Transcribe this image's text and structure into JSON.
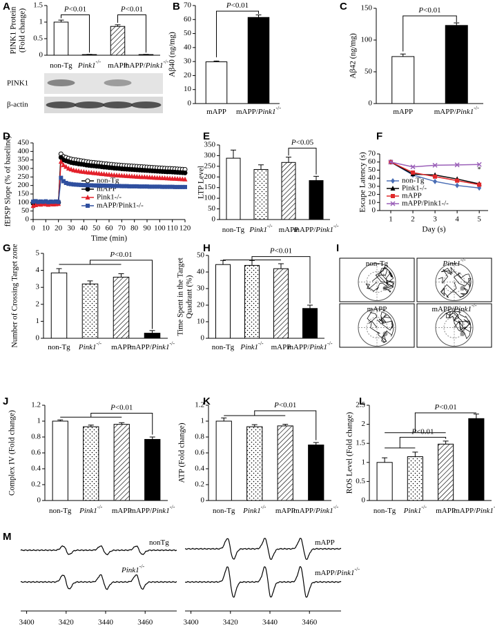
{
  "chart_data": [
    {
      "type": "bar",
      "label": "A",
      "y_label": [
        "PINK1 Protein",
        "(Fold change)"
      ],
      "categories": [
        "non-Tg",
        "Pink1-/-",
        "mAPP",
        "mAPP/Pink1-/-"
      ],
      "values": [
        1.0,
        0.02,
        0.87,
        0.02
      ],
      "errors": [
        0.06,
        0.005,
        0.05,
        0.005
      ],
      "fills": [
        "white",
        "white",
        "hatch",
        "white"
      ],
      "ylim": [
        0,
        1.5
      ],
      "yticks": [
        0,
        0.5,
        1,
        1.5
      ],
      "annotations": [
        "P<0.01",
        "P<0.01"
      ],
      "blot_labels": [
        "PINK1",
        "β-actin"
      ]
    },
    {
      "type": "bar",
      "label": "B",
      "y_label": "Aβ40 (ng/mg)",
      "categories": [
        "mAPP",
        "mAPP/Pink1-/-"
      ],
      "values": [
        29.8,
        61.5
      ],
      "errors": [
        0.6,
        1.8
      ],
      "fills": [
        "white",
        "black"
      ],
      "ylim": [
        0,
        70
      ],
      "yticks": [
        0,
        10,
        20,
        30,
        40,
        50,
        60,
        70
      ],
      "annotations": [
        "P<0.01"
      ]
    },
    {
      "type": "bar",
      "label": "C",
      "y_label": "Aβ42 (ng/mg)",
      "categories": [
        "mAPP",
        "mAPP/Pink1-/-"
      ],
      "values": [
        74,
        123
      ],
      "errors": [
        4,
        4
      ],
      "fills": [
        "white",
        "black"
      ],
      "ylim": [
        0,
        150
      ],
      "yticks": [
        0,
        50,
        100,
        150
      ],
      "annotations": [
        "P<0.01"
      ]
    },
    {
      "type": "line",
      "label": "D",
      "y_label": "fEPSP Slope (% of baseline)",
      "x_label": "Time (min)",
      "legend": "lower left",
      "x": [
        0,
        2,
        4,
        6,
        8,
        10,
        12,
        14,
        16,
        18,
        20,
        22,
        24,
        26,
        28,
        30,
        32,
        34,
        36,
        38,
        40,
        42,
        44,
        46,
        48,
        50,
        52,
        54,
        56,
        58,
        60,
        62,
        64,
        66,
        68,
        70,
        72,
        74,
        76,
        78,
        80,
        82,
        84,
        86,
        88,
        90,
        92,
        94,
        96,
        98,
        100,
        102,
        104,
        106,
        108,
        110,
        112,
        114,
        116,
        118,
        120
      ],
      "xlim": [
        0,
        120
      ],
      "xticks": [
        0,
        10,
        20,
        30,
        40,
        50,
        60,
        70,
        80,
        90,
        100,
        110,
        120
      ],
      "ylim": [
        0,
        450
      ],
      "yticks": [
        0,
        50,
        100,
        150,
        200,
        250,
        300,
        350,
        400,
        450
      ],
      "series": [
        {
          "name": "non-Tg",
          "color": "#000000",
          "marker": "circle-open",
          "values": [
            100,
            98,
            102,
            99,
            101,
            100,
            97,
            103,
            100,
            99,
            101,
            385,
            370,
            365,
            360,
            355,
            352,
            350,
            348,
            345,
            343,
            340,
            338,
            336,
            335,
            333,
            332,
            330,
            328,
            327,
            325,
            324,
            322,
            321,
            320,
            318,
            317,
            316,
            315,
            314,
            313,
            312,
            311,
            310,
            309,
            308,
            307,
            306,
            305,
            304,
            303,
            302,
            301,
            300,
            300,
            299,
            298,
            297,
            296,
            295,
            294
          ]
        },
        {
          "name": "mAPP",
          "color": "#000000",
          "marker": "circle",
          "values": [
            95,
            97,
            99,
            96,
            98,
            100,
            97,
            99,
            98,
            96,
            99,
            365,
            350,
            345,
            340,
            335,
            332,
            330,
            327,
            325,
            323,
            320,
            318,
            316,
            315,
            313,
            312,
            310,
            308,
            307,
            305,
            304,
            302,
            301,
            300,
            298,
            297,
            296,
            295,
            294,
            293,
            292,
            291,
            290,
            289,
            288,
            287,
            286,
            285,
            284,
            283,
            282,
            281,
            280,
            280,
            279,
            278,
            277,
            276,
            275,
            274
          ]
        },
        {
          "name": "Pink1-/-",
          "color": "#e3202a",
          "marker": "triangle",
          "values": [
            80,
            85,
            90,
            88,
            92,
            90,
            87,
            91,
            89,
            90,
            92,
            340,
            320,
            310,
            300,
            295,
            290,
            287,
            285,
            282,
            280,
            278,
            276,
            275,
            273,
            272,
            270,
            268,
            267,
            265,
            264,
            262,
            261,
            260,
            259,
            258,
            257,
            256,
            255,
            254,
            253,
            252,
            251,
            250,
            250,
            249,
            248,
            247,
            246,
            245,
            245,
            244,
            243,
            242,
            241,
            240,
            240,
            239,
            238,
            237,
            236
          ]
        },
        {
          "name": "mAPP/Pink1-/-",
          "color": "#2f4f9f",
          "marker": "square",
          "values": [
            105,
            108,
            103,
            106,
            104,
            107,
            102,
            105,
            104,
            106,
            103,
            245,
            225,
            215,
            210,
            208,
            206,
            205,
            204,
            203,
            202,
            202,
            201,
            201,
            200,
            200,
            200,
            199,
            199,
            198,
            198,
            198,
            197,
            197,
            197,
            196,
            196,
            196,
            195,
            195,
            195,
            195,
            194,
            194,
            194,
            194,
            193,
            193,
            193,
            193,
            193,
            192,
            192,
            192,
            192,
            192,
            191,
            191,
            191,
            191,
            191
          ]
        }
      ]
    },
    {
      "type": "bar",
      "label": "E",
      "y_label": "LTP Level",
      "categories": [
        "non-Tg",
        "Pink1-/-",
        "mAPP",
        "mAPP/Pink1-/-"
      ],
      "values": [
        288,
        235,
        268,
        183
      ],
      "errors": [
        38,
        22,
        25,
        20
      ],
      "fills": [
        "white",
        "dots",
        "hatch",
        "black"
      ],
      "ylim": [
        0,
        350
      ],
      "yticks": [
        0,
        50,
        100,
        150,
        200,
        250,
        300,
        350
      ],
      "annotations": [
        "P<0.05"
      ]
    },
    {
      "type": "line",
      "label": "F",
      "y_label": "Escape Latency (s)",
      "x_label": "Day (s)",
      "legend": "lower left",
      "x": [
        1,
        2,
        3,
        4,
        5
      ],
      "xlim": [
        0.5,
        5.4
      ],
      "xticks": [
        1,
        2,
        3,
        4,
        5
      ],
      "ylim": [
        0,
        70
      ],
      "yticks": [
        0,
        10,
        20,
        30,
        40,
        50,
        60,
        70
      ],
      "annotations": [
        "*"
      ],
      "series": [
        {
          "name": "non-Tg",
          "color": "#4a6eb5",
          "marker": "diamond",
          "values": [
            60,
            44,
            36,
            31,
            28
          ]
        },
        {
          "name": "Pink1-/-",
          "color": "#000000",
          "marker": "triangle",
          "values": [
            60,
            45,
            44,
            39,
            33
          ]
        },
        {
          "name": "mAPP",
          "color": "#e0282a",
          "marker": "square",
          "values": [
            60,
            47,
            42,
            37,
            32
          ]
        },
        {
          "name": "mAPP/Pink1-/-",
          "color": "#9a5fb8",
          "marker": "cross",
          "values": [
            60,
            54,
            56,
            56.5,
            57
          ]
        }
      ]
    },
    {
      "type": "bar",
      "label": "G",
      "y_label": "Number of Crossing Target zone",
      "categories": [
        "non-Tg",
        "Pink1-/-",
        "mAPP",
        "mAPP/Pink1-/-"
      ],
      "values": [
        3.85,
        3.2,
        3.6,
        0.3
      ],
      "errors": [
        0.25,
        0.18,
        0.2,
        0.15
      ],
      "fills": [
        "white",
        "dots",
        "hatch",
        "black"
      ],
      "ylim": [
        0,
        5
      ],
      "yticks": [
        0,
        1,
        2,
        3,
        4,
        5
      ],
      "annotations": [
        "P<0.01"
      ]
    },
    {
      "type": "bar",
      "label": "H",
      "y_label": [
        "Time Spent in the Target",
        "Quadrant (%)"
      ],
      "categories": [
        "non-Tg",
        "Pink1-/-",
        "mAPP",
        "mAPP/Pink1-/-"
      ],
      "values": [
        44.5,
        44,
        42,
        18
      ],
      "errors": [
        2.5,
        3,
        3,
        2
      ],
      "fills": [
        "white",
        "dots",
        "hatch",
        "black"
      ],
      "ylim": [
        0,
        50
      ],
      "yticks": [
        0,
        10,
        20,
        30,
        40,
        50
      ],
      "annotations": [
        "P<0.01"
      ]
    },
    {
      "type": "tracks",
      "label": "I",
      "panel_labels": [
        "non-Tg",
        "Pink1-/-",
        "mAPP",
        "mAPP/Pink1-/-"
      ]
    },
    {
      "type": "bar",
      "label": "J",
      "y_label": "Complex IV (Fold change)",
      "categories": [
        "non-Tg",
        "Pink1-/-",
        "mAPP",
        "mAPP/Pink1-/-"
      ],
      "values": [
        1.0,
        0.93,
        0.96,
        0.77
      ],
      "errors": [
        0.015,
        0.02,
        0.02,
        0.03
      ],
      "fills": [
        "white",
        "dots",
        "hatch",
        "black"
      ],
      "ylim": [
        0,
        1.2
      ],
      "yticks": [
        0,
        0.2,
        0.4,
        0.6,
        0.8,
        1,
        1.2
      ],
      "annotations": [
        "P<0.01"
      ]
    },
    {
      "type": "bar",
      "label": "K",
      "y_label": "ATP (Fold change)",
      "categories": [
        "non-Tg",
        "Pink1-/-",
        "mAPP",
        "mAPP/Pink1-/-"
      ],
      "values": [
        1.0,
        0.93,
        0.94,
        0.7
      ],
      "errors": [
        0.04,
        0.025,
        0.02,
        0.03
      ],
      "fills": [
        "white",
        "dots",
        "hatch",
        "black"
      ],
      "ylim": [
        0,
        1.2
      ],
      "yticks": [
        0,
        0.2,
        0.4,
        0.6,
        0.8,
        1,
        1.2
      ],
      "annotations": [
        "P<0.01"
      ]
    },
    {
      "type": "bar",
      "label": "L",
      "y_label": "ROS Level (Fold change)",
      "categories": [
        "non-Tg",
        "Pink1-/-",
        "mAPP",
        "mAPP/Pink1-/-"
      ],
      "values": [
        1.0,
        1.15,
        1.48,
        2.15
      ],
      "errors": [
        0.12,
        0.12,
        0.08,
        0.12
      ],
      "fills": [
        "white",
        "dots",
        "hatch",
        "black"
      ],
      "ylim": [
        0,
        2.5
      ],
      "yticks": [
        0,
        0.5,
        1,
        1.5,
        2,
        2.5
      ],
      "annotations": [
        "P<0.01",
        "P<0.01"
      ]
    },
    {
      "type": "spectrum",
      "label": "M",
      "labels": [
        "nonTg",
        "Pink1-/-",
        "mAPP",
        "mAPP/Pink1-/-"
      ],
      "xlim": [
        3397,
        3476
      ],
      "xticks": [
        3400,
        3420,
        3440,
        3460
      ]
    }
  ]
}
